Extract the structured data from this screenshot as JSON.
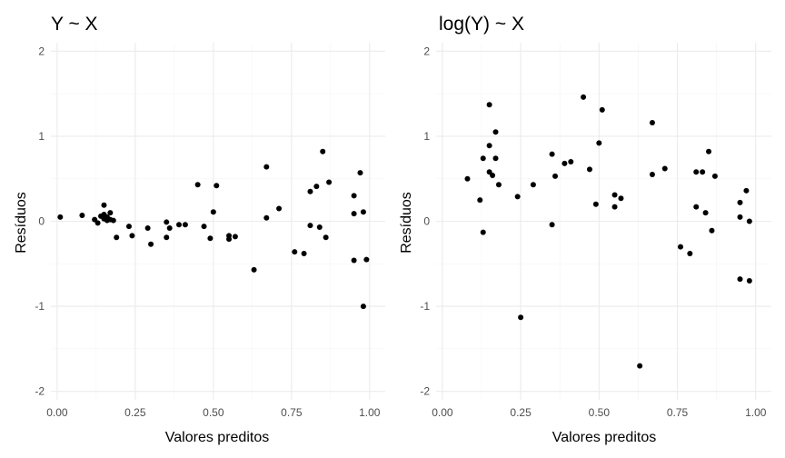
{
  "chart_data": [
    {
      "type": "scatter",
      "title": "Y ~ X",
      "xlabel": "Valores preditos",
      "ylabel": "Resíduos",
      "xlim": [
        -0.02,
        1.05
      ],
      "ylim": [
        -2.1,
        2.1
      ],
      "xticks": [
        0.0,
        0.25,
        0.5,
        0.75,
        1.0
      ],
      "xtick_labels": [
        "0.00",
        "0.25",
        "0.50",
        "0.75",
        "1.00"
      ],
      "yticks": [
        -2,
        -1,
        0,
        1,
        2
      ],
      "ytick_labels": [
        "-2",
        "-1",
        "0",
        "1",
        "2"
      ],
      "grid": true,
      "points": [
        {
          "x": 0.01,
          "y": 0.05
        },
        {
          "x": 0.08,
          "y": 0.07
        },
        {
          "x": 0.12,
          "y": 0.02
        },
        {
          "x": 0.13,
          "y": -0.02
        },
        {
          "x": 0.14,
          "y": 0.06
        },
        {
          "x": 0.15,
          "y": 0.19
        },
        {
          "x": 0.15,
          "y": 0.08
        },
        {
          "x": 0.15,
          "y": 0.03
        },
        {
          "x": 0.16,
          "y": 0.05
        },
        {
          "x": 0.16,
          "y": 0.01
        },
        {
          "x": 0.17,
          "y": 0.1
        },
        {
          "x": 0.17,
          "y": 0.02
        },
        {
          "x": 0.18,
          "y": 0.01
        },
        {
          "x": 0.19,
          "y": -0.19
        },
        {
          "x": 0.23,
          "y": -0.06
        },
        {
          "x": 0.24,
          "y": -0.17
        },
        {
          "x": 0.29,
          "y": -0.08
        },
        {
          "x": 0.3,
          "y": -0.27
        },
        {
          "x": 0.35,
          "y": -0.01
        },
        {
          "x": 0.35,
          "y": -0.19
        },
        {
          "x": 0.36,
          "y": -0.08
        },
        {
          "x": 0.39,
          "y": -0.04
        },
        {
          "x": 0.41,
          "y": -0.04
        },
        {
          "x": 0.45,
          "y": 0.43
        },
        {
          "x": 0.47,
          "y": -0.06
        },
        {
          "x": 0.49,
          "y": -0.2
        },
        {
          "x": 0.5,
          "y": 0.11
        },
        {
          "x": 0.51,
          "y": 0.42
        },
        {
          "x": 0.55,
          "y": -0.17
        },
        {
          "x": 0.55,
          "y": -0.21
        },
        {
          "x": 0.57,
          "y": -0.18
        },
        {
          "x": 0.63,
          "y": -0.57
        },
        {
          "x": 0.67,
          "y": 0.64
        },
        {
          "x": 0.67,
          "y": 0.04
        },
        {
          "x": 0.71,
          "y": 0.15
        },
        {
          "x": 0.76,
          "y": -0.36
        },
        {
          "x": 0.79,
          "y": -0.38
        },
        {
          "x": 0.81,
          "y": 0.35
        },
        {
          "x": 0.81,
          "y": -0.05
        },
        {
          "x": 0.83,
          "y": 0.41
        },
        {
          "x": 0.84,
          "y": -0.07
        },
        {
          "x": 0.85,
          "y": 0.82
        },
        {
          "x": 0.86,
          "y": -0.19
        },
        {
          "x": 0.87,
          "y": 0.46
        },
        {
          "x": 0.95,
          "y": 0.3
        },
        {
          "x": 0.95,
          "y": 0.09
        },
        {
          "x": 0.95,
          "y": -0.46
        },
        {
          "x": 0.97,
          "y": 0.57
        },
        {
          "x": 0.98,
          "y": 0.11
        },
        {
          "x": 0.98,
          "y": -1.0
        },
        {
          "x": 0.99,
          "y": -0.45
        }
      ]
    },
    {
      "type": "scatter",
      "title": "log(Y) ~ X",
      "xlabel": "Valores preditos",
      "ylabel": "Resíduos",
      "xlim": [
        -0.02,
        1.05
      ],
      "ylim": [
        -2.1,
        2.1
      ],
      "xticks": [
        0.0,
        0.25,
        0.5,
        0.75,
        1.0
      ],
      "xtick_labels": [
        "0.00",
        "0.25",
        "0.50",
        "0.75",
        "1.00"
      ],
      "yticks": [
        -2,
        -1,
        0,
        1,
        2
      ],
      "ytick_labels": [
        "-2",
        "-1",
        "0",
        "1",
        "2"
      ],
      "grid": true,
      "points": [
        {
          "x": 0.08,
          "y": 0.5
        },
        {
          "x": 0.12,
          "y": 0.25
        },
        {
          "x": 0.13,
          "y": 0.74
        },
        {
          "x": 0.13,
          "y": -0.13
        },
        {
          "x": 0.15,
          "y": 1.37
        },
        {
          "x": 0.15,
          "y": 0.89
        },
        {
          "x": 0.15,
          "y": 0.58
        },
        {
          "x": 0.16,
          "y": 0.54
        },
        {
          "x": 0.17,
          "y": 0.74
        },
        {
          "x": 0.17,
          "y": 1.05
        },
        {
          "x": 0.18,
          "y": 0.43
        },
        {
          "x": 0.24,
          "y": 0.29
        },
        {
          "x": 0.25,
          "y": -1.13
        },
        {
          "x": 0.29,
          "y": 0.43
        },
        {
          "x": 0.35,
          "y": 0.79
        },
        {
          "x": 0.35,
          "y": -0.04
        },
        {
          "x": 0.36,
          "y": 0.53
        },
        {
          "x": 0.39,
          "y": 0.68
        },
        {
          "x": 0.41,
          "y": 0.7
        },
        {
          "x": 0.45,
          "y": 1.46
        },
        {
          "x": 0.47,
          "y": 0.61
        },
        {
          "x": 0.49,
          "y": 0.2
        },
        {
          "x": 0.5,
          "y": 0.92
        },
        {
          "x": 0.51,
          "y": 1.31
        },
        {
          "x": 0.55,
          "y": 0.31
        },
        {
          "x": 0.55,
          "y": 0.17
        },
        {
          "x": 0.57,
          "y": 0.27
        },
        {
          "x": 0.63,
          "y": -1.7
        },
        {
          "x": 0.67,
          "y": 1.16
        },
        {
          "x": 0.67,
          "y": 0.55
        },
        {
          "x": 0.71,
          "y": 0.62
        },
        {
          "x": 0.76,
          "y": -0.3
        },
        {
          "x": 0.79,
          "y": -0.38
        },
        {
          "x": 0.81,
          "y": 0.58
        },
        {
          "x": 0.81,
          "y": 0.17
        },
        {
          "x": 0.83,
          "y": 0.58
        },
        {
          "x": 0.84,
          "y": 0.1
        },
        {
          "x": 0.85,
          "y": 0.82
        },
        {
          "x": 0.86,
          "y": -0.11
        },
        {
          "x": 0.87,
          "y": 0.53
        },
        {
          "x": 0.95,
          "y": 0.22
        },
        {
          "x": 0.95,
          "y": 0.05
        },
        {
          "x": 0.95,
          "y": -0.68
        },
        {
          "x": 0.97,
          "y": 0.36
        },
        {
          "x": 0.98,
          "y": 0.0
        },
        {
          "x": 0.98,
          "y": -0.7
        }
      ]
    }
  ]
}
